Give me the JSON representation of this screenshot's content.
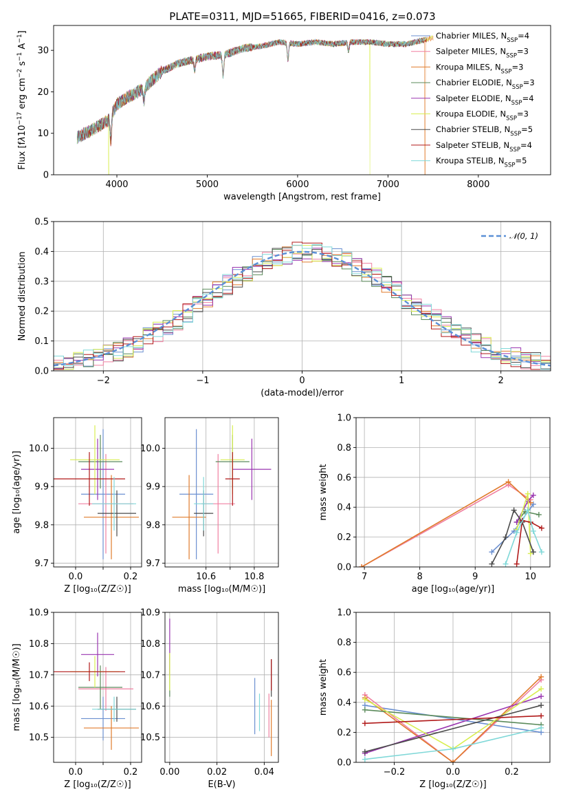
{
  "title": "PLATE=0311, MJD=51665, FIBERID=0416, z=0.073",
  "colors": {
    "Chabrier MILES": "#6a8fd0",
    "Salpeter MILES": "#f07fa0",
    "Kroupa MILES": "#e07b2c",
    "Chabrier ELODIE": "#5a8a5a",
    "Salpeter ELODIE": "#9a35b0",
    "Kroupa ELODIE": "#d8ee50",
    "Chabrier STELIB": "#4a4a4a",
    "Salpeter STELIB": "#b01818",
    "Kroupa STELIB": "#7fd8d8"
  },
  "chart_data": [
    {
      "id": "spectrum",
      "type": "line",
      "xlabel": "wavelength [Angstrom, rest frame]",
      "ylabel_html": "Flux [f<tspan font-style='italic'>λ</tspan>10<tspan baseline-shift='super' font-size='9'>−17</tspan> erg cm<tspan baseline-shift='super' font-size='9'>−2</tspan> s<tspan baseline-shift='super' font-size='9'>−1</tspan> A<tspan baseline-shift='super' font-size='9'>−1</tspan>]",
      "xlim": [
        3300,
        8800
      ],
      "ylim": [
        0,
        36
      ],
      "xticks": [
        4000,
        5000,
        6000,
        7000,
        8000
      ],
      "yticks": [
        0,
        10,
        20,
        30
      ],
      "continuum_x": [
        3560,
        3700,
        3900,
        4000,
        4100,
        4200,
        4300,
        4400,
        4500,
        4700,
        4900,
        5000,
        5200,
        5400,
        5600,
        5800,
        6000,
        6200,
        6400,
        6600,
        6800,
        7000,
        7200,
        7400,
        7500
      ],
      "continuum_y": [
        9,
        10.5,
        13,
        17,
        18.5,
        19.5,
        21,
        23,
        25,
        27,
        28,
        28.5,
        29,
        30.5,
        31,
        32,
        31.5,
        32,
        31.5,
        32,
        32,
        31.5,
        31.5,
        32.5,
        33
      ],
      "absorption_features": [
        {
          "x": 3933,
          "depth": 6
        },
        {
          "x": 4300,
          "depth": 3
        },
        {
          "x": 4861,
          "depth": 2.5
        },
        {
          "x": 5175,
          "depth": 5
        },
        {
          "x": 5893,
          "depth": 4
        },
        {
          "x": 6563,
          "depth": 2
        }
      ],
      "dropouts": [
        {
          "x": 3910,
          "model": "Kroupa ELODIE"
        },
        {
          "x": 6800,
          "model": "Kroupa ELODIE"
        },
        {
          "x": 7410,
          "model": "Kroupa MILES"
        }
      ],
      "legend": {
        "position": "top-right",
        "entries": [
          {
            "name": "Chabrier MILES",
            "n": "4"
          },
          {
            "name": "Salpeter MILES",
            "n": "3"
          },
          {
            "name": "Kroupa MILES",
            "n": "3"
          },
          {
            "name": "Chabrier ELODIE",
            "n": "3"
          },
          {
            "name": "Salpeter ELODIE",
            "n": "4"
          },
          {
            "name": "Kroupa ELODIE",
            "n": "3"
          },
          {
            "name": "Chabrier STELIB",
            "n": "5"
          },
          {
            "name": "Salpeter STELIB",
            "n": "4"
          },
          {
            "name": "Kroupa STELIB",
            "n": "5"
          }
        ]
      }
    },
    {
      "id": "residuals",
      "type": "histogram",
      "xlabel": "(data-model)/error",
      "ylabel": "Normed distribution",
      "xlim": [
        -2.5,
        2.5
      ],
      "ylim": [
        0,
        0.5
      ],
      "xticks": [
        -2,
        -1,
        0,
        1,
        2
      ],
      "yticks": [
        0.0,
        0.1,
        0.2,
        0.3,
        0.4,
        0.5
      ],
      "bin_width": 0.1,
      "bin_start": -2.5,
      "gaussian_label": "𝒩(0, 1)",
      "legend_position": "top-right"
    },
    {
      "id": "age_vs_Z",
      "type": "errorbar",
      "xlabel": "Z [log₁₀(Z/Z☉)]",
      "ylabel": "age  [log₁₀(age/yr)]",
      "xlim": [
        -0.08,
        0.24
      ],
      "ylim": [
        9.69,
        10.08
      ],
      "xticks": [
        0.0,
        0.1,
        0.2
      ],
      "xticklabels": [
        "0.0",
        "",
        "0.2"
      ],
      "yticks": [
        9.7,
        9.8,
        9.9,
        10.0
      ],
      "points": [
        {
          "model": "Chabrier MILES",
          "x": 0.1,
          "xerr": 0.08,
          "y": 9.88,
          "yerr": 0.17
        },
        {
          "model": "Salpeter MILES",
          "x": 0.11,
          "xerr": 0.1,
          "y": 9.855,
          "yerr": 0.13
        },
        {
          "model": "Kroupa MILES",
          "x": 0.13,
          "xerr": 0.1,
          "y": 9.82,
          "yerr": 0.11
        },
        {
          "model": "Chabrier ELODIE",
          "x": 0.09,
          "xerr": 0.08,
          "y": 9.965,
          "yerr": 0.07
        },
        {
          "model": "Salpeter ELODIE",
          "x": 0.08,
          "xerr": 0.06,
          "y": 9.945,
          "yerr": 0.08
        },
        {
          "model": "Kroupa ELODIE",
          "x": 0.07,
          "xerr": 0.09,
          "y": 9.97,
          "yerr": 0.09
        },
        {
          "model": "Chabrier STELIB",
          "x": 0.15,
          "xerr": 0.07,
          "y": 9.83,
          "yerr": 0.06
        },
        {
          "model": "Salpeter STELIB",
          "x": 0.05,
          "xerr": 0.13,
          "y": 9.92,
          "yerr": 0.07
        },
        {
          "model": "Kroupa STELIB",
          "x": 0.14,
          "xerr": 0.08,
          "y": 9.855,
          "yerr": 0.07
        }
      ]
    },
    {
      "id": "age_vs_mass",
      "type": "errorbar",
      "xlabel": "mass [log₁₀(M/M☉)]",
      "ylabel": "",
      "xlim": [
        10.43,
        10.9
      ],
      "ylim": [
        9.69,
        10.08
      ],
      "xticks": [
        10.6,
        10.7,
        10.8
      ],
      "xticklabels": [
        "10.6",
        "",
        "10.8"
      ],
      "yticks": [
        9.7,
        9.8,
        9.9,
        10.0
      ],
      "points": [
        {
          "model": "Chabrier MILES",
          "x": 10.56,
          "xerr": 0.07,
          "y": 9.88,
          "yerr": 0.17
        },
        {
          "model": "Salpeter MILES",
          "x": 10.65,
          "xerr": 0.07,
          "y": 9.855,
          "yerr": 0.13
        },
        {
          "model": "Kroupa MILES",
          "x": 10.53,
          "xerr": 0.07,
          "y": 9.82,
          "yerr": 0.11
        },
        {
          "model": "Chabrier ELODIE",
          "x": 10.71,
          "xerr": 0.07,
          "y": 9.965,
          "yerr": 0.07
        },
        {
          "model": "Salpeter ELODIE",
          "x": 10.79,
          "xerr": 0.08,
          "y": 9.945,
          "yerr": 0.08
        },
        {
          "model": "Kroupa ELODIE",
          "x": 10.71,
          "xerr": 0.05,
          "y": 9.97,
          "yerr": 0.09
        },
        {
          "model": "Chabrier STELIB",
          "x": 10.59,
          "xerr": 0.04,
          "y": 9.83,
          "yerr": 0.06
        },
        {
          "model": "Salpeter STELIB",
          "x": 10.71,
          "xerr": 0.03,
          "y": 9.92,
          "yerr": 0.07
        },
        {
          "model": "Kroupa STELIB",
          "x": 10.59,
          "xerr": 0.04,
          "y": 9.855,
          "yerr": 0.07
        }
      ]
    },
    {
      "id": "weight_vs_age",
      "type": "line",
      "xlabel": "age  [log₁₀(age/yr)]",
      "ylabel": "mass weight",
      "xlim": [
        6.85,
        10.35
      ],
      "ylim": [
        0,
        1
      ],
      "xticks": [
        7,
        8,
        9,
        10
      ],
      "yticks": [
        0.0,
        0.2,
        0.4,
        0.6,
        0.8,
        1.0
      ],
      "series": [
        {
          "model": "Chabrier MILES",
          "x": [
            9.3,
            9.7,
            10.05
          ],
          "y": [
            0.1,
            0.24,
            0.42
          ]
        },
        {
          "model": "Salpeter MILES",
          "x": [
            6.95,
            9.6,
            10.0
          ],
          "y": [
            0.0,
            0.55,
            0.45
          ]
        },
        {
          "model": "Kroupa MILES",
          "x": [
            6.95,
            9.6,
            10.0
          ],
          "y": [
            0.0,
            0.57,
            0.43
          ]
        },
        {
          "model": "Chabrier ELODIE",
          "x": [
            9.75,
            9.9,
            10.15
          ],
          "y": [
            0.3,
            0.37,
            0.35
          ]
        },
        {
          "model": "Salpeter ELODIE",
          "x": [
            9.75,
            9.95,
            10.05
          ],
          "y": [
            0.3,
            0.44,
            0.48
          ]
        },
        {
          "model": "Kroupa ELODIE",
          "x": [
            9.75,
            9.95,
            10.0
          ],
          "y": [
            0.25,
            0.49,
            0.09
          ]
        },
        {
          "model": "Chabrier STELIB",
          "x": [
            9.3,
            9.55,
            9.7,
            9.85,
            10.05
          ],
          "y": [
            0.02,
            0.2,
            0.38,
            0.3,
            0.1
          ]
        },
        {
          "model": "Salpeter STELIB",
          "x": [
            9.75,
            9.85,
            10.0,
            10.2
          ],
          "y": [
            0.02,
            0.31,
            0.3,
            0.26
          ]
        },
        {
          "model": "Kroupa STELIB",
          "x": [
            9.55,
            9.75,
            9.95,
            10.05,
            10.2
          ],
          "y": [
            0.02,
            0.23,
            0.38,
            0.24,
            0.1
          ]
        }
      ]
    },
    {
      "id": "mass_vs_Z",
      "type": "errorbar",
      "xlabel": "Z [log₁₀(Z/Z☉)]",
      "ylabel": "mass [log₁₀(M/M☉)]",
      "xlim": [
        -0.08,
        0.24
      ],
      "ylim": [
        10.42,
        10.9
      ],
      "xticks": [
        0.0,
        0.1,
        0.2
      ],
      "xticklabels": [
        "0.0",
        "",
        "0.2"
      ],
      "yticks": [
        10.5,
        10.6,
        10.7,
        10.8,
        10.9
      ],
      "points": [
        {
          "model": "Chabrier MILES",
          "x": 0.1,
          "xerr": 0.08,
          "y": 10.56,
          "yerr": 0.07
        },
        {
          "model": "Salpeter MILES",
          "x": 0.11,
          "xerr": 0.1,
          "y": 10.655,
          "yerr": 0.07
        },
        {
          "model": "Kroupa MILES",
          "x": 0.13,
          "xerr": 0.1,
          "y": 10.53,
          "yerr": 0.07
        },
        {
          "model": "Chabrier ELODIE",
          "x": 0.09,
          "xerr": 0.08,
          "y": 10.66,
          "yerr": 0.07
        },
        {
          "model": "Salpeter ELODIE",
          "x": 0.08,
          "xerr": 0.06,
          "y": 10.765,
          "yerr": 0.07
        },
        {
          "model": "Kroupa ELODIE",
          "x": 0.07,
          "xerr": 0.09,
          "y": 10.71,
          "yerr": 0.05
        },
        {
          "model": "Chabrier STELIB",
          "x": 0.15,
          "xerr": 0.07,
          "y": 10.59,
          "yerr": 0.04
        },
        {
          "model": "Salpeter STELIB",
          "x": 0.05,
          "xerr": 0.13,
          "y": 10.71,
          "yerr": 0.03
        },
        {
          "model": "Kroupa STELIB",
          "x": 0.14,
          "xerr": 0.08,
          "y": 10.59,
          "yerr": 0.04
        }
      ]
    },
    {
      "id": "mass_vs_ebv",
      "type": "errorbar",
      "xlabel": "E(B-V)",
      "ylabel": "",
      "xlim": [
        -0.002,
        0.046
      ],
      "ylim": [
        10.42,
        10.9
      ],
      "xticks": [
        0.0,
        0.02,
        0.04
      ],
      "xticklabels": [
        "0.00",
        "0.02",
        "0.04"
      ],
      "yticks": [
        10.5,
        10.6,
        10.7,
        10.8,
        10.9
      ],
      "points": [
        {
          "model": "Chabrier MILES",
          "x": 0.036,
          "xerr": 0,
          "y": 10.6,
          "yerr": 0.09
        },
        {
          "model": "Salpeter MILES",
          "x": 0.042,
          "xerr": 0,
          "y": 10.57,
          "yerr": 0.07
        },
        {
          "model": "Kroupa MILES",
          "x": 0.043,
          "xerr": 0,
          "y": 10.53,
          "yerr": 0.09
        },
        {
          "model": "Chabrier ELODIE",
          "x": 0.0,
          "xerr": 0,
          "y": 10.7,
          "yerr": 0.07
        },
        {
          "model": "Salpeter ELODIE",
          "x": 0.0,
          "xerr": 0,
          "y": 10.79,
          "yerr": 0.09
        },
        {
          "model": "Kroupa ELODIE",
          "x": 0.0,
          "xerr": 0,
          "y": 10.71,
          "yerr": 0.06
        },
        {
          "model": "Chabrier STELIB",
          "x": 0.043,
          "xerr": 0,
          "y": 10.69,
          "yerr": 0.06
        },
        {
          "model": "Salpeter STELIB",
          "x": 0.043,
          "xerr": 0,
          "y": 10.7,
          "yerr": 0.05
        },
        {
          "model": "Kroupa STELIB",
          "x": 0.038,
          "xerr": 0,
          "y": 10.58,
          "yerr": 0.06
        }
      ]
    },
    {
      "id": "weight_vs_Z",
      "type": "line",
      "xlabel": "Z [log₁₀(Z/Z☉)]",
      "ylabel": "mass weight",
      "xlim": [
        -0.33,
        0.33
      ],
      "ylim": [
        0,
        1
      ],
      "xticks": [
        -0.2,
        0.0,
        0.2
      ],
      "yticks": [
        0.0,
        0.2,
        0.4,
        0.6,
        0.8,
        1.0
      ],
      "series": [
        {
          "model": "Chabrier MILES",
          "x": [
            -0.3,
            0.3
          ],
          "y": [
            0.38,
            0.2
          ]
        },
        {
          "model": "Salpeter MILES",
          "x": [
            -0.3,
            0.0,
            0.3
          ],
          "y": [
            0.45,
            0.0,
            0.55
          ]
        },
        {
          "model": "Kroupa MILES",
          "x": [
            -0.3,
            0.0,
            0.3
          ],
          "y": [
            0.43,
            0.0,
            0.57
          ]
        },
        {
          "model": "Chabrier ELODIE",
          "x": [
            -0.3,
            0.3
          ],
          "y": [
            0.35,
            0.25
          ]
        },
        {
          "model": "Salpeter ELODIE",
          "x": [
            -0.3,
            0.3
          ],
          "y": [
            0.06,
            0.44
          ]
        },
        {
          "model": "Kroupa ELODIE",
          "x": [
            -0.3,
            0.0,
            0.3
          ],
          "y": [
            0.42,
            0.09,
            0.49
          ]
        },
        {
          "model": "Chabrier STELIB",
          "x": [
            -0.3,
            0.3
          ],
          "y": [
            0.07,
            0.38
          ]
        },
        {
          "model": "Salpeter STELIB",
          "x": [
            -0.3,
            0.3
          ],
          "y": [
            0.26,
            0.31
          ]
        },
        {
          "model": "Kroupa STELIB",
          "x": [
            -0.3,
            0.0,
            0.3
          ],
          "y": [
            0.02,
            0.09,
            0.23
          ]
        }
      ]
    }
  ]
}
